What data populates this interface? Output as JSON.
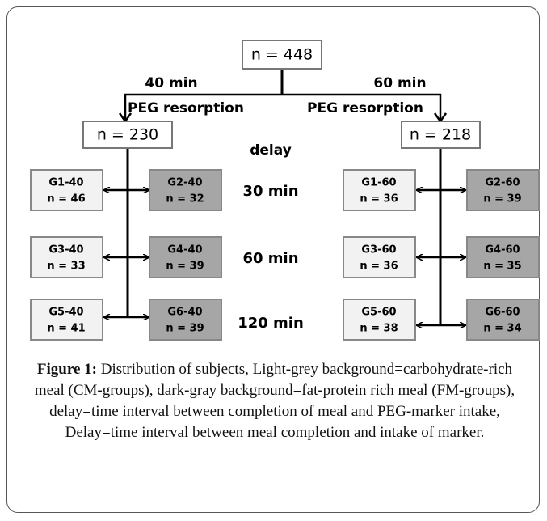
{
  "root": "n = 448",
  "branches": [
    {
      "time": "40 min",
      "label": "PEG resorption",
      "n": "n = 230"
    },
    {
      "time": "60 min",
      "label": "PEG resorption",
      "n": "n = 218"
    }
  ],
  "delay_label": "delay",
  "delays": [
    "30 min",
    "60 min",
    "120 min"
  ],
  "groups": [
    [
      [
        "G1-40",
        "n = 46"
      ],
      [
        "G2-40",
        "n = 32"
      ],
      [
        "G1-60",
        "n = 36"
      ],
      [
        "G2-60",
        "n = 39"
      ]
    ],
    [
      [
        "G3-40",
        "n = 33"
      ],
      [
        "G4-40",
        "n = 39"
      ],
      [
        "G3-60",
        "n = 36"
      ],
      [
        "G4-60",
        "n = 35"
      ]
    ],
    [
      [
        "G5-40",
        "n = 41"
      ],
      [
        "G6-40",
        "n = 39"
      ],
      [
        "G5-60",
        "n = 38"
      ],
      [
        "G6-60",
        "n = 34"
      ]
    ]
  ],
  "caption": {
    "label": "Figure 1:",
    "text": "Distribution of subjects, Light-grey background=carbohydrate-rich meal (CM-groups), dark-gray background=fat-protein rich meal (FM-groups), delay=time interval between completion of meal and PEG-marker intake, Delay=time interval between meal completion and intake of marker."
  }
}
